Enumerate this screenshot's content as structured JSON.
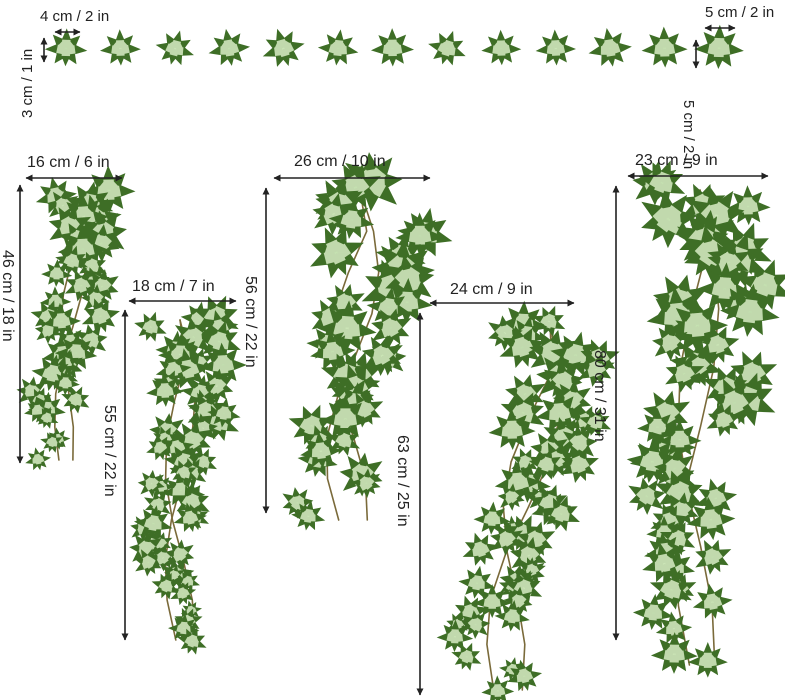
{
  "small_leaves": {
    "first_width": "4 cm / 2 in",
    "first_height": "3 cm / 1 in",
    "last_width": "5 cm / 2 in",
    "last_height": "5 cm / 2 in",
    "count": 13
  },
  "vines": [
    {
      "width": "16 cm / 6 in",
      "height": "46 cm / 18 in"
    },
    {
      "width": "18 cm / 7 in",
      "height": "55 cm / 22 in"
    },
    {
      "width": "26 cm / 10 in",
      "height": "56 cm / 22 in"
    },
    {
      "width": "24 cm / 9 in",
      "height": "63 cm / 25 in"
    },
    {
      "width": "23 cm / 9 in",
      "height": "80 cm / 31 in"
    }
  ],
  "colors": {
    "leaf_dark": "#3f8a2c",
    "leaf_mid": "#5aa83c",
    "leaf_light": "#8cc76a",
    "stem": "#7a6a3a",
    "dimension": "#222222"
  }
}
